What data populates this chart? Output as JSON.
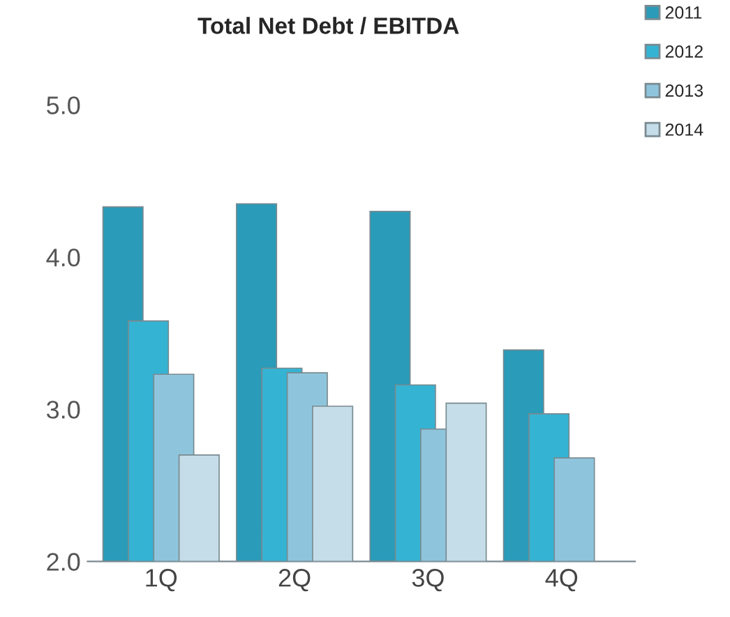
{
  "chart_data": {
    "type": "bar",
    "title": "Total Net Debt / EBITDA",
    "categories": [
      "1Q",
      "2Q",
      "3Q",
      "4Q"
    ],
    "series": [
      {
        "name": "2011",
        "color": "#2a9bb8",
        "values": [
          4.33,
          4.35,
          4.3,
          3.39
        ]
      },
      {
        "name": "2012",
        "color": "#35b3d3",
        "values": [
          3.58,
          3.27,
          3.16,
          2.97
        ]
      },
      {
        "name": "2013",
        "color": "#8ec5dc",
        "values": [
          3.23,
          3.24,
          2.87,
          2.68
        ]
      },
      {
        "name": "2014",
        "color": "#c5dde8",
        "values": [
          2.7,
          3.02,
          3.04,
          null
        ]
      }
    ],
    "ylim": [
      2.0,
      5.0
    ],
    "yticks": [
      {
        "value": 2,
        "label": "2.0"
      },
      {
        "value": 3,
        "label": "3.0"
      },
      {
        "value": 4,
        "label": "4.0"
      },
      {
        "value": 5,
        "label": "5.0"
      }
    ],
    "grid": false,
    "legend": "top right"
  }
}
